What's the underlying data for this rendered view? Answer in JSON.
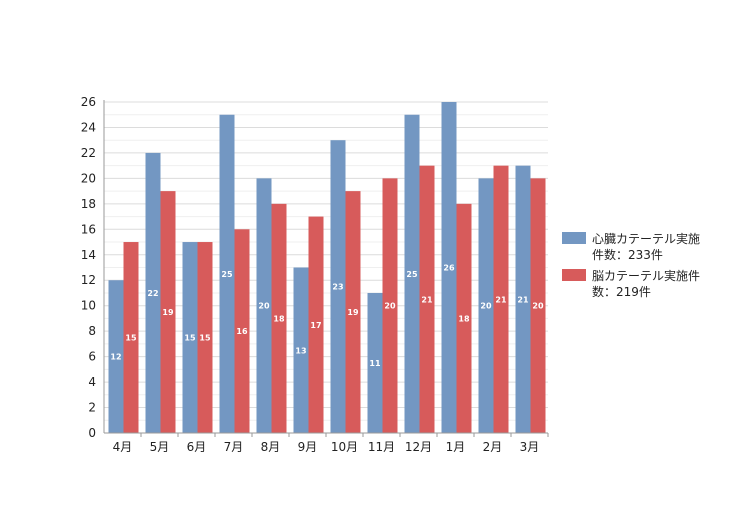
{
  "chart_data": {
    "type": "bar",
    "categories": [
      "4月",
      "5月",
      "6月",
      "7月",
      "8月",
      "9月",
      "10月",
      "11月",
      "12月",
      "1月",
      "2月",
      "3月"
    ],
    "series": [
      {
        "name": "心臓カテーテル実施件数：233件",
        "legend_lines": [
          "心臓カテーテル実施",
          "件数：233件"
        ],
        "color": "#7397c2",
        "values": [
          12,
          22,
          15,
          25,
          20,
          13,
          23,
          11,
          25,
          26,
          20,
          21
        ]
      },
      {
        "name": "脳カテーテル実施件数：219件",
        "legend_lines": [
          "脳カテーテル実施件",
          "数：219件"
        ],
        "color": "#d75b5b",
        "values": [
          15,
          19,
          15,
          16,
          18,
          17,
          19,
          20,
          21,
          18,
          21,
          20
        ]
      }
    ],
    "ylim": [
      0,
      26
    ],
    "yticks": [
      0,
      2,
      4,
      6,
      8,
      10,
      12,
      14,
      16,
      18,
      20,
      22,
      24,
      26
    ],
    "grid": true,
    "legend_position": "right",
    "title": "",
    "xlabel": "",
    "ylabel": ""
  }
}
